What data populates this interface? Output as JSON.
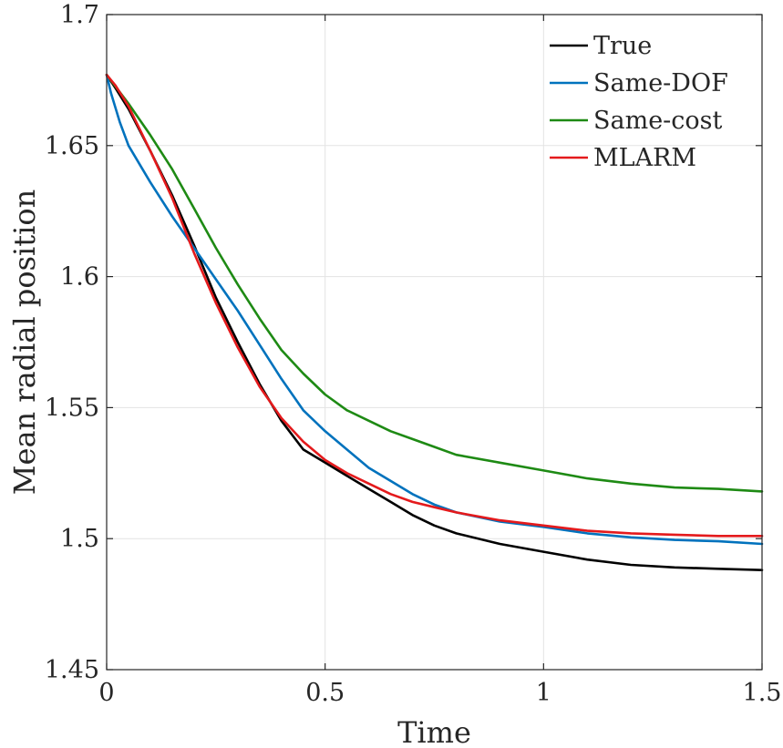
{
  "chart_data": {
    "type": "line",
    "title": "",
    "xlabel": "Time",
    "ylabel": "Mean radial position",
    "xlim": [
      0,
      1.5
    ],
    "ylim": [
      1.45,
      1.7
    ],
    "x_ticks": [
      "0",
      "0.5",
      "1",
      "1.5"
    ],
    "y_ticks": [
      "1.45",
      "1.5",
      "1.55",
      "1.6",
      "1.65",
      "1.7"
    ],
    "grid": true,
    "legend_position": "top-right",
    "series": [
      {
        "name": "True",
        "color": "#000000",
        "x": [
          0,
          0.02,
          0.05,
          0.1,
          0.15,
          0.2,
          0.25,
          0.3,
          0.35,
          0.4,
          0.45,
          0.5,
          0.55,
          0.6,
          0.65,
          0.7,
          0.75,
          0.8,
          0.9,
          1.0,
          1.1,
          1.2,
          1.3,
          1.4,
          1.5
        ],
        "y": [
          1.677,
          1.672,
          1.664,
          1.648,
          1.631,
          1.612,
          1.592,
          1.575,
          1.559,
          1.545,
          1.534,
          1.529,
          1.524,
          1.519,
          1.514,
          1.509,
          1.505,
          1.502,
          1.498,
          1.495,
          1.492,
          1.49,
          1.489,
          1.4885,
          1.488
        ]
      },
      {
        "name": "Same-DOF",
        "color": "#0072BD",
        "x": [
          0,
          0.01,
          0.03,
          0.05,
          0.1,
          0.15,
          0.2,
          0.25,
          0.3,
          0.35,
          0.4,
          0.45,
          0.5,
          0.55,
          0.6,
          0.65,
          0.7,
          0.75,
          0.8,
          0.9,
          1.0,
          1.1,
          1.2,
          1.3,
          1.4,
          1.5
        ],
        "y": [
          1.677,
          1.67,
          1.659,
          1.65,
          1.636,
          1.623,
          1.611,
          1.599,
          1.587,
          1.574,
          1.561,
          1.549,
          1.541,
          1.534,
          1.527,
          1.522,
          1.517,
          1.513,
          1.51,
          1.5065,
          1.5045,
          1.502,
          1.5005,
          1.4995,
          1.499,
          1.498
        ]
      },
      {
        "name": "Same-cost",
        "color": "#1E8A14",
        "x": [
          0,
          0.05,
          0.1,
          0.15,
          0.2,
          0.25,
          0.3,
          0.35,
          0.4,
          0.45,
          0.5,
          0.55,
          0.6,
          0.65,
          0.7,
          0.75,
          0.8,
          0.9,
          1.0,
          1.1,
          1.2,
          1.3,
          1.4,
          1.5
        ],
        "y": [
          1.677,
          1.666,
          1.654,
          1.641,
          1.626,
          1.611,
          1.597,
          1.584,
          1.572,
          1.563,
          1.555,
          1.549,
          1.545,
          1.541,
          1.538,
          1.535,
          1.532,
          1.529,
          1.526,
          1.523,
          1.521,
          1.5195,
          1.519,
          1.518
        ]
      },
      {
        "name": "MLARM",
        "color": "#E41A1C",
        "x": [
          0,
          0.02,
          0.05,
          0.1,
          0.15,
          0.2,
          0.25,
          0.3,
          0.35,
          0.4,
          0.45,
          0.5,
          0.55,
          0.6,
          0.65,
          0.7,
          0.75,
          0.8,
          0.9,
          1.0,
          1.1,
          1.2,
          1.3,
          1.4,
          1.5
        ],
        "y": [
          1.677,
          1.673,
          1.665,
          1.648,
          1.63,
          1.609,
          1.59,
          1.573,
          1.558,
          1.546,
          1.537,
          1.53,
          1.525,
          1.521,
          1.517,
          1.514,
          1.512,
          1.51,
          1.507,
          1.505,
          1.503,
          1.502,
          1.5015,
          1.501,
          1.501
        ]
      }
    ]
  }
}
